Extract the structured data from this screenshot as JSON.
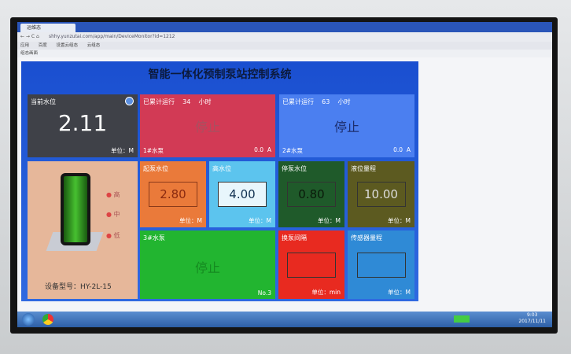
{
  "browser": {
    "tab": "运维态",
    "url": "shhy.yunzutai.com/app/main/DeviceMonitor?id=1212",
    "bookmarks": [
      "应用",
      "百度",
      "设置云组态",
      "云组态"
    ],
    "page_header": "组态画面"
  },
  "title": "智能一体化预制泵站控制系统",
  "level": {
    "label": "当前水位",
    "value": "2.11",
    "unit": "单位：M"
  },
  "pump1": {
    "run_label": "已累计运行",
    "hours": "34",
    "hours_unit": "小时",
    "status": "停止",
    "name": "1#水泵",
    "current": "0.0",
    "current_unit": "A"
  },
  "pump2": {
    "run_label": "已累计运行",
    "hours": "63",
    "hours_unit": "小时",
    "status": "停止",
    "name": "2#水泵",
    "current": "0.0",
    "current_unit": "A"
  },
  "device": {
    "high": "高",
    "mid": "中",
    "low": "低",
    "model": "设备型号：HY-2L-15"
  },
  "start_level": {
    "label": "起泵水位",
    "value": "2.80",
    "unit": "单位：M"
  },
  "high_level": {
    "label": "高水位",
    "value": "4.00",
    "unit": "单位：M"
  },
  "stop_level": {
    "label": "停泵水位",
    "value": "0.80",
    "unit": "单位：M"
  },
  "range": {
    "label": "液位量程",
    "value": "10.00",
    "unit": "单位：M"
  },
  "pump3": {
    "name": "3#水泵",
    "status": "停止",
    "no": "No.3"
  },
  "interval": {
    "label": "换泵间隔",
    "value": "",
    "unit": "单位：min"
  },
  "sensor": {
    "label": "传感器量程",
    "value": "",
    "unit": "单位：M"
  },
  "taskbar": {
    "time": "9:03",
    "date": "2017/11/11"
  }
}
